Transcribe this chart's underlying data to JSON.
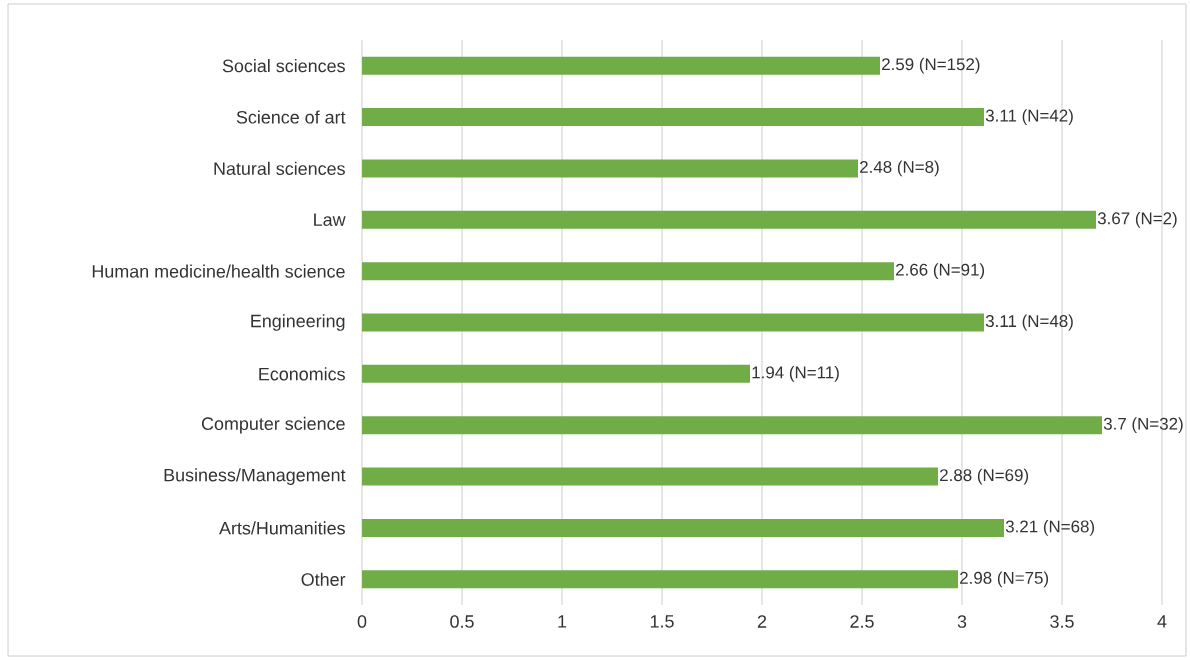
{
  "chart_data": {
    "type": "bar",
    "orientation": "horizontal",
    "categories": [
      "Social sciences",
      "Science of art",
      "Natural sciences",
      "Law",
      "Human medicine/health science",
      "Engineering",
      "Economics",
      "Computer science",
      "Business/Management",
      "Arts/Humanities",
      "Other"
    ],
    "values": [
      2.59,
      3.11,
      2.48,
      3.67,
      2.66,
      3.11,
      1.94,
      3.7,
      2.88,
      3.21,
      2.98
    ],
    "value_labels": [
      "2.59 (N=152)",
      "3.11 (N=42)",
      "2.48 (N=8)",
      "3.67 (N=2)",
      "2.66 (N=91)",
      "3.11 (N=48)",
      "1.94 (N=11)",
      "3.7 (N=32)",
      "2.88 (N=69)",
      "3.21 (N=68)",
      "2.98 (N=75)"
    ],
    "color": "#70ad47",
    "xlim": [
      0,
      4
    ],
    "xticks": [
      0,
      0.5,
      1,
      1.5,
      2,
      2.5,
      3,
      3.5,
      4
    ],
    "grid": "x"
  }
}
